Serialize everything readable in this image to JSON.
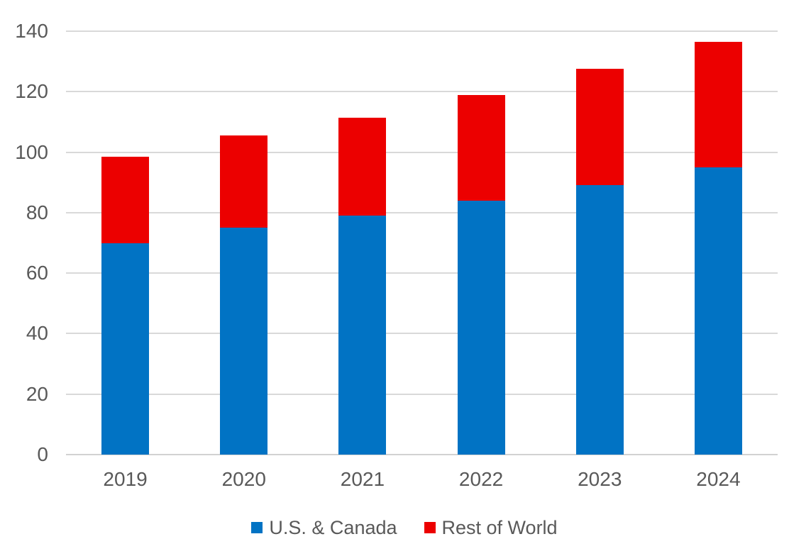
{
  "chart_data": {
    "type": "bar",
    "stacked": true,
    "title": "",
    "xlabel": "",
    "ylabel": "",
    "categories": [
      "2019",
      "2020",
      "2021",
      "2022",
      "2023",
      "2024"
    ],
    "series": [
      {
        "name": "U.S. & Canada",
        "color": "#0173C4",
        "values": [
          70,
          75,
          79,
          84,
          89,
          95
        ]
      },
      {
        "name": "Rest of World",
        "color": "#EC0000",
        "values": [
          28.5,
          30.5,
          32.5,
          35,
          38.5,
          41.5
        ]
      }
    ],
    "totals": [
      98.5,
      105.5,
      111.5,
      119,
      127.5,
      136.5
    ],
    "ylim": [
      0,
      140
    ],
    "yticks": [
      0,
      20,
      40,
      60,
      80,
      100,
      120,
      140
    ],
    "grid": true,
    "legend_position": "bottom",
    "colors": {
      "grid_line": "#D9D9D9",
      "axis_line": "#D2D2D2",
      "tick_text": "#595959",
      "background": "#FFFFFF"
    }
  }
}
